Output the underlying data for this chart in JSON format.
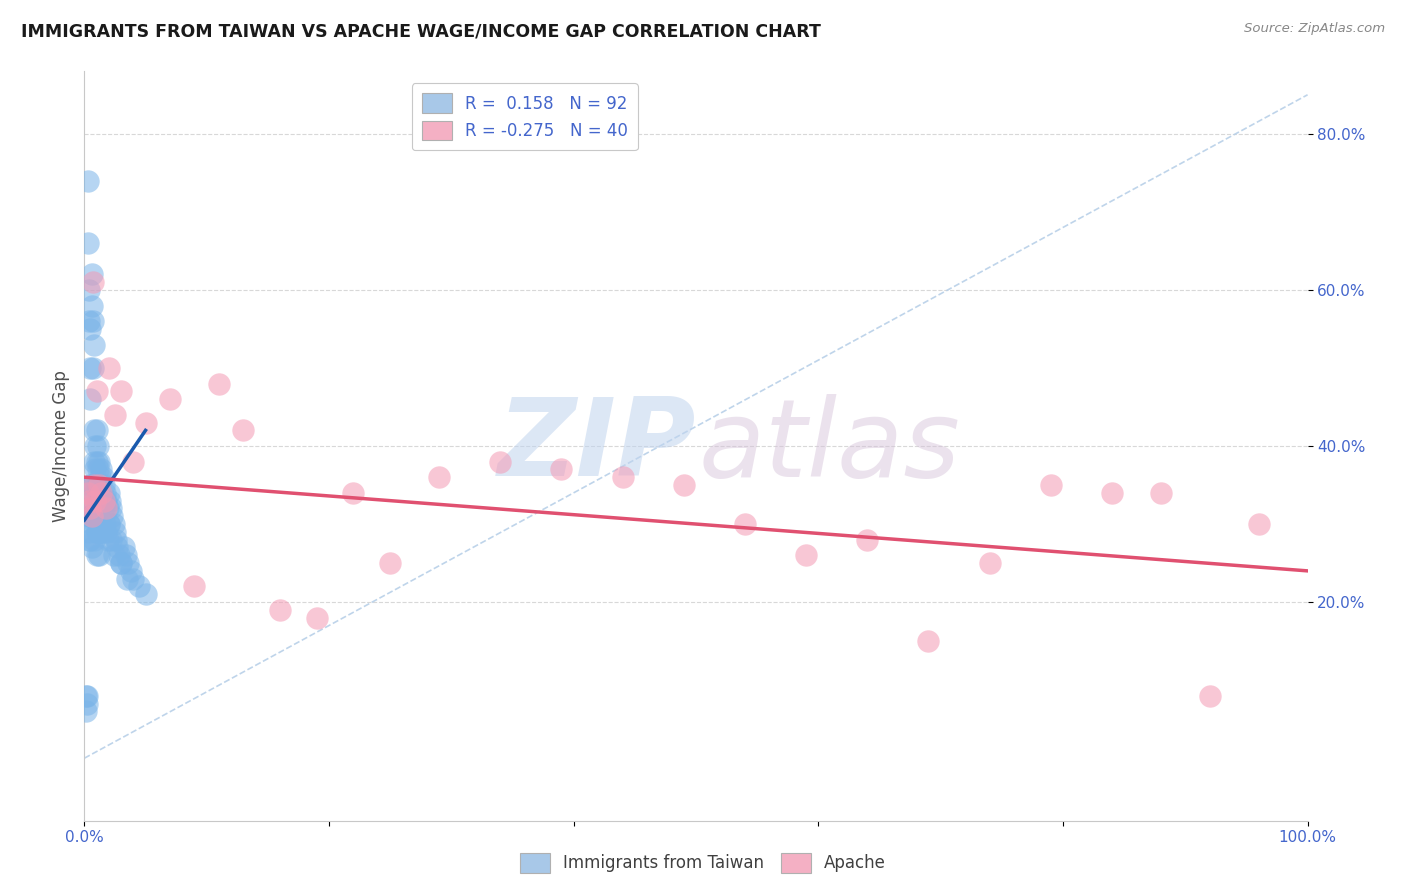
{
  "title": "IMMIGRANTS FROM TAIWAN VS APACHE WAGE/INCOME GAP CORRELATION CHART",
  "source": "Source: ZipAtlas.com",
  "ylabel": "Wage/Income Gap",
  "ytick_vals": [
    0.2,
    0.4,
    0.6,
    0.8
  ],
  "ytick_labels": [
    "20.0%",
    "40.0%",
    "60.0%",
    "80.0%"
  ],
  "xtick_labels": [
    "0.0%",
    "100.0%"
  ],
  "xlim": [
    0.0,
    1.0
  ],
  "ylim": [
    -0.08,
    0.88
  ],
  "blue_scatter_color": "#7ab4e8",
  "pink_scatter_color": "#f49ab4",
  "blue_line_color": "#1a5aad",
  "pink_line_color": "#e05070",
  "dash_line_color": "#b8d0e8",
  "grid_color": "#d8d8d8",
  "tick_color": "#4466cc",
  "title_color": "#1a1a1a",
  "source_color": "#888888",
  "legend_label_color": "#4466cc",
  "watermark_zip_color": "#c0d8f0",
  "watermark_atlas_color": "#d8c0d8",
  "taiwan_x": [
    0.001,
    0.001,
    0.002,
    0.002,
    0.003,
    0.003,
    0.003,
    0.003,
    0.004,
    0.004,
    0.004,
    0.004,
    0.005,
    0.005,
    0.005,
    0.005,
    0.005,
    0.005,
    0.006,
    0.006,
    0.006,
    0.006,
    0.006,
    0.007,
    0.007,
    0.007,
    0.007,
    0.008,
    0.008,
    0.008,
    0.008,
    0.008,
    0.008,
    0.009,
    0.009,
    0.009,
    0.009,
    0.01,
    0.01,
    0.01,
    0.01,
    0.01,
    0.01,
    0.011,
    0.011,
    0.011,
    0.011,
    0.012,
    0.012,
    0.012,
    0.012,
    0.012,
    0.013,
    0.013,
    0.013,
    0.014,
    0.014,
    0.014,
    0.015,
    0.015,
    0.015,
    0.016,
    0.016,
    0.017,
    0.017,
    0.018,
    0.018,
    0.019,
    0.019,
    0.02,
    0.02,
    0.021,
    0.022,
    0.023,
    0.024,
    0.025,
    0.026,
    0.027,
    0.028,
    0.03,
    0.032,
    0.034,
    0.036,
    0.038,
    0.04,
    0.045,
    0.05,
    0.02,
    0.022,
    0.024,
    0.03,
    0.035
  ],
  "taiwan_y": [
    0.08,
    0.06,
    0.08,
    0.07,
    0.74,
    0.66,
    0.32,
    0.29,
    0.6,
    0.56,
    0.31,
    0.28,
    0.55,
    0.5,
    0.46,
    0.35,
    0.31,
    0.28,
    0.62,
    0.58,
    0.33,
    0.3,
    0.27,
    0.56,
    0.5,
    0.35,
    0.31,
    0.53,
    0.42,
    0.38,
    0.35,
    0.31,
    0.28,
    0.4,
    0.37,
    0.34,
    0.3,
    0.42,
    0.38,
    0.35,
    0.32,
    0.29,
    0.26,
    0.4,
    0.37,
    0.33,
    0.29,
    0.38,
    0.35,
    0.32,
    0.29,
    0.26,
    0.36,
    0.33,
    0.29,
    0.37,
    0.34,
    0.3,
    0.36,
    0.33,
    0.29,
    0.35,
    0.32,
    0.34,
    0.3,
    0.33,
    0.29,
    0.32,
    0.28,
    0.34,
    0.3,
    0.33,
    0.32,
    0.31,
    0.3,
    0.29,
    0.28,
    0.27,
    0.26,
    0.25,
    0.27,
    0.26,
    0.25,
    0.24,
    0.23,
    0.22,
    0.21,
    0.3,
    0.28,
    0.26,
    0.25,
    0.23
  ],
  "apache_x": [
    0.003,
    0.004,
    0.005,
    0.006,
    0.007,
    0.008,
    0.009,
    0.01,
    0.012,
    0.014,
    0.016,
    0.018,
    0.02,
    0.025,
    0.03,
    0.04,
    0.05,
    0.07,
    0.09,
    0.11,
    0.13,
    0.16,
    0.19,
    0.22,
    0.25,
    0.29,
    0.34,
    0.39,
    0.44,
    0.49,
    0.54,
    0.59,
    0.64,
    0.69,
    0.74,
    0.79,
    0.84,
    0.88,
    0.92,
    0.96
  ],
  "apache_y": [
    0.34,
    0.33,
    0.32,
    0.31,
    0.61,
    0.35,
    0.33,
    0.47,
    0.35,
    0.34,
    0.33,
    0.32,
    0.5,
    0.44,
    0.47,
    0.38,
    0.43,
    0.46,
    0.22,
    0.48,
    0.42,
    0.19,
    0.18,
    0.34,
    0.25,
    0.36,
    0.38,
    0.37,
    0.36,
    0.35,
    0.3,
    0.26,
    0.28,
    0.15,
    0.25,
    0.35,
    0.34,
    0.34,
    0.08,
    0.3
  ],
  "blue_line_x": [
    0.0,
    0.05
  ],
  "blue_line_y": [
    0.305,
    0.42
  ],
  "pink_line_x": [
    0.0,
    1.0
  ],
  "pink_line_y": [
    0.36,
    0.24
  ],
  "dash_line_x": [
    0.0,
    1.0
  ],
  "dash_line_y": [
    0.0,
    0.85
  ]
}
